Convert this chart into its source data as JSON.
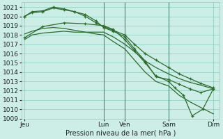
{
  "bg_color": "#cceee6",
  "grid_color": "#88ccbb",
  "line_color": "#2d6b2d",
  "ylim": [
    1009,
    1021.5
  ],
  "yticks": [
    1009,
    1010,
    1011,
    1012,
    1013,
    1014,
    1015,
    1016,
    1017,
    1018,
    1019,
    1020,
    1021
  ],
  "xlim": [
    0,
    9.3
  ],
  "xlabel": "Pression niveau de la mer( hPa )",
  "day_labels": [
    "Jeu",
    "Lun",
    "Ven",
    "Sam",
    "Dim"
  ],
  "day_positions": [
    0.15,
    3.85,
    4.85,
    6.9,
    9.0
  ],
  "vline_positions": [
    3.85,
    4.85,
    6.9
  ],
  "series": [
    {
      "x": [
        0.15,
        0.5,
        1.0,
        1.5,
        2.0,
        2.5,
        3.0,
        3.5,
        3.85,
        4.3,
        4.85,
        5.3,
        5.8,
        6.3,
        6.9,
        7.4,
        7.9,
        8.4,
        9.0
      ],
      "y": [
        1017.5,
        1018.0,
        1018.2,
        1018.3,
        1018.4,
        1018.3,
        1018.3,
        1018.3,
        1018.3,
        1017.8,
        1017.0,
        1016.2,
        1015.2,
        1014.5,
        1013.8,
        1013.3,
        1012.9,
        1012.6,
        1012.2
      ],
      "has_marker": false
    },
    {
      "x": [
        0.15,
        0.5,
        1.0,
        1.5,
        2.0,
        2.5,
        3.0,
        3.5,
        3.85,
        4.3,
        4.85,
        5.3,
        5.8,
        6.3,
        6.9,
        7.4,
        7.9,
        8.4,
        9.0
      ],
      "y": [
        1018.1,
        1018.4,
        1018.7,
        1018.8,
        1018.7,
        1018.5,
        1018.3,
        1018.1,
        1018.0,
        1017.3,
        1016.5,
        1015.3,
        1014.0,
        1013.0,
        1012.5,
        1011.5,
        1010.8,
        1010.2,
        1009.5
      ],
      "has_marker": false
    },
    {
      "x": [
        0.15,
        0.5,
        1.0,
        1.5,
        2.0,
        2.5,
        3.0,
        3.5,
        3.85,
        4.3,
        4.85,
        5.3,
        5.8,
        6.3,
        6.9,
        7.4,
        7.9,
        8.4,
        9.0
      ],
      "y": [
        1020.0,
        1020.4,
        1020.5,
        1020.9,
        1020.7,
        1020.5,
        1020.0,
        1019.3,
        1018.9,
        1018.5,
        1018.0,
        1017.0,
        1016.0,
        1015.3,
        1014.5,
        1013.8,
        1013.3,
        1012.8,
        1012.3
      ],
      "has_marker": true
    },
    {
      "x": [
        0.15,
        0.5,
        1.0,
        1.5,
        2.0,
        2.5,
        3.0,
        3.5,
        3.85,
        4.3,
        4.85,
        5.3,
        5.8,
        6.3,
        6.9,
        7.4,
        7.9,
        8.4,
        9.0
      ],
      "y": [
        1020.0,
        1020.5,
        1020.6,
        1021.0,
        1020.8,
        1020.5,
        1020.2,
        1019.5,
        1018.8,
        1018.4,
        1017.8,
        1016.5,
        1015.2,
        1013.5,
        1013.2,
        1012.7,
        1012.2,
        1011.8,
        1012.2
      ],
      "has_marker": true
    },
    {
      "x": [
        0.15,
        1.0,
        2.0,
        3.0,
        3.85,
        4.3,
        4.85,
        5.3,
        5.8,
        6.3,
        6.9,
        7.2,
        7.6,
        8.0,
        8.5,
        9.0
      ],
      "y": [
        1017.7,
        1018.9,
        1019.3,
        1019.2,
        1019.0,
        1018.6,
        1017.5,
        1016.3,
        1015.0,
        1013.6,
        1013.0,
        1012.3,
        1011.5,
        1009.3,
        1010.0,
        1012.2
      ],
      "has_marker": true
    }
  ]
}
